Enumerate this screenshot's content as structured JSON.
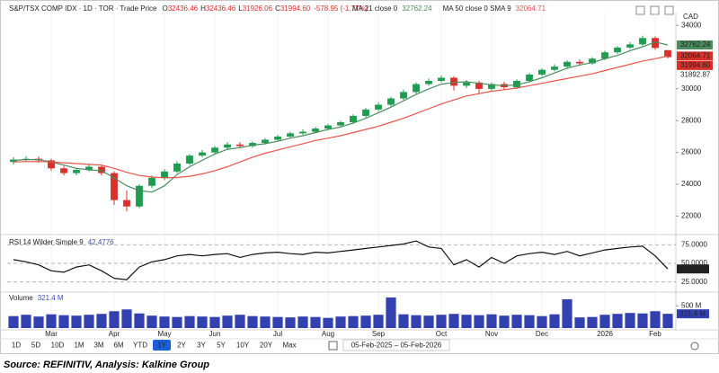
{
  "chart_data": [
    {
      "type": "candlestick",
      "title": "S&P/TSX COMP IDX · 1D · TOR · Trade Price",
      "currency": "CAD",
      "categories": [
        null,
        null,
        null,
        "Mar",
        null,
        null,
        null,
        null,
        "Apr",
        null,
        null,
        null,
        "May",
        null,
        null,
        null,
        "Jun",
        null,
        null,
        null,
        null,
        "Jul",
        null,
        null,
        null,
        "Aug",
        null,
        null,
        null,
        "Sep",
        null,
        null,
        null,
        null,
        "Oct",
        null,
        null,
        null,
        "Nov",
        null,
        null,
        null,
        "Dec",
        null,
        null,
        null,
        null,
        "2026",
        null,
        null,
        null,
        "Feb",
        null
      ],
      "open": [
        25400,
        25550,
        25600,
        25500,
        25000,
        24700,
        24900,
        25100,
        24700,
        23000,
        22600,
        23900,
        24400,
        24800,
        25300,
        25800,
        26000,
        26300,
        26500,
        26400,
        26600,
        26800,
        27000,
        27200,
        27300,
        27500,
        27700,
        27900,
        28300,
        28700,
        29000,
        29400,
        29800,
        30300,
        30500,
        30700,
        30200,
        30400,
        30000,
        30300,
        30100,
        30500,
        30900,
        31200,
        31400,
        31700,
        31600,
        31900,
        32300,
        32600,
        32800,
        33200,
        32436.46
      ],
      "high": [
        25700,
        25750,
        25750,
        25600,
        25150,
        25050,
        25250,
        25200,
        24800,
        23600,
        24000,
        24550,
        24950,
        25450,
        25900,
        26150,
        26400,
        26650,
        26650,
        26700,
        26900,
        27100,
        27300,
        27450,
        27600,
        27800,
        28000,
        28400,
        28800,
        29150,
        29500,
        29950,
        30400,
        30650,
        30850,
        30800,
        30550,
        30500,
        30400,
        30450,
        30600,
        31000,
        31300,
        31550,
        31800,
        31850,
        32000,
        32400,
        32700,
        32950,
        33350,
        33300,
        32436.46
      ],
      "low": [
        25250,
        25400,
        25350,
        24850,
        24550,
        24550,
        24800,
        24550,
        22700,
        22300,
        22500,
        23750,
        24250,
        24700,
        25200,
        25700,
        25900,
        26200,
        26250,
        26300,
        26500,
        26700,
        26900,
        27100,
        27200,
        27400,
        27600,
        27800,
        28200,
        28600,
        28900,
        29300,
        29700,
        30200,
        30400,
        29900,
        30050,
        29700,
        29850,
        29950,
        30000,
        30400,
        30800,
        31100,
        31300,
        31450,
        31500,
        31800,
        32200,
        32500,
        32700,
        32450,
        31926.06
      ],
      "close": [
        25550,
        25600,
        25500,
        25000,
        24700,
        24900,
        25100,
        24700,
        23000,
        22600,
        23900,
        24400,
        24800,
        25300,
        25800,
        26000,
        26300,
        26500,
        26400,
        26600,
        26800,
        27000,
        27200,
        27300,
        27500,
        27700,
        27900,
        28300,
        28700,
        29000,
        29400,
        29800,
        30300,
        30500,
        30700,
        30200,
        30400,
        30000,
        30300,
        30100,
        30500,
        30900,
        31200,
        31400,
        31700,
        31600,
        31900,
        32300,
        32600,
        32800,
        33200,
        32573.55,
        31994.6
      ],
      "close_labels": [
        null,
        null,
        null,
        null,
        null,
        null,
        null,
        null,
        null,
        null,
        null,
        null,
        null,
        null,
        null,
        null,
        null,
        null,
        null,
        null,
        null,
        null,
        null,
        null,
        null,
        null,
        null,
        null,
        null,
        null,
        null,
        null,
        null,
        null,
        null,
        null,
        null,
        null,
        null,
        null,
        null,
        null,
        null,
        null,
        null,
        null,
        null,
        null,
        null,
        null,
        null,
        null,
        "31994.60"
      ],
      "up_color": "#1e9c50",
      "down_color": "#d9302b",
      "series": [
        {
          "name": "MA 21 close 0",
          "color": "#4a8c5c",
          "values": [
            25500,
            25550,
            25550,
            25400,
            25200,
            25000,
            24900,
            24850,
            24400,
            23900,
            23600,
            23500,
            23900,
            24600,
            25100,
            25500,
            25900,
            26200,
            26300,
            26450,
            26550,
            26700,
            26900,
            27050,
            27250,
            27450,
            27600,
            27850,
            28150,
            28500,
            28850,
            29250,
            29650,
            30000,
            30300,
            30400,
            30450,
            30350,
            30250,
            30200,
            30250,
            30450,
            30700,
            31000,
            31300,
            31500,
            31650,
            31900,
            32100,
            32400,
            32650,
            32950,
            32762.24
          ]
        },
        {
          "name": "MA 50 close 0 SMA 9",
          "color": "#e8534a",
          "values": [
            25400,
            25420,
            25430,
            25400,
            25350,
            25300,
            25250,
            25200,
            25000,
            24750,
            24550,
            24450,
            24400,
            24420,
            24500,
            24650,
            24850,
            25100,
            25400,
            25700,
            25950,
            26150,
            26350,
            26550,
            26750,
            26900,
            27050,
            27250,
            27450,
            27650,
            27900,
            28150,
            28450,
            28750,
            29050,
            29300,
            29550,
            29700,
            29850,
            29950,
            30050,
            30200,
            30350,
            30500,
            30650,
            30800,
            30950,
            31150,
            31350,
            31550,
            31750,
            31900,
            32064.71
          ]
        }
      ],
      "price_markers": [
        31892.87
      ],
      "ylim": [
        21000,
        34800
      ],
      "yticks": [
        22000,
        24000,
        26000,
        28000,
        30000,
        34000
      ]
    },
    {
      "type": "line",
      "title": "RSI 14 Wilder Simple 9",
      "color": "#111111",
      "values": [
        55,
        52,
        48,
        40,
        38,
        45,
        48,
        40,
        30,
        28,
        45,
        52,
        55,
        60,
        62,
        60,
        62,
        63,
        58,
        62,
        64,
        65,
        63,
        62,
        65,
        64,
        66,
        68,
        70,
        72,
        74,
        76,
        80,
        72,
        70,
        48,
        55,
        45,
        58,
        50,
        60,
        63,
        65,
        62,
        66,
        60,
        64,
        68,
        70,
        72,
        73,
        60,
        42.4776
      ],
      "ylim": [
        15,
        85
      ],
      "yticks": [
        {
          "value": 75,
          "label": "75.0000"
        },
        {
          "value": 50,
          "label": "50.0000"
        },
        {
          "value": 25,
          "label": "25.0000"
        }
      ]
    },
    {
      "type": "bar",
      "title": "Volume",
      "color": "#3340b0",
      "values": [
        270,
        300,
        260,
        310,
        290,
        280,
        300,
        320,
        380,
        420,
        330,
        280,
        260,
        250,
        270,
        260,
        250,
        280,
        300,
        270,
        260,
        250,
        240,
        260,
        250,
        230,
        260,
        270,
        280,
        300,
        690,
        310,
        290,
        280,
        300,
        320,
        300,
        290,
        310,
        280,
        300,
        290,
        270,
        310,
        650,
        240,
        250,
        300,
        320,
        340,
        330,
        380,
        321.4
      ],
      "value_labels": [
        null,
        null,
        null,
        null,
        null,
        null,
        null,
        null,
        null,
        null,
        null,
        null,
        null,
        null,
        null,
        null,
        null,
        null,
        null,
        null,
        null,
        null,
        null,
        null,
        null,
        null,
        null,
        null,
        null,
        null,
        null,
        null,
        null,
        null,
        null,
        null,
        null,
        null,
        null,
        null,
        null,
        null,
        null,
        null,
        null,
        null,
        null,
        null,
        null,
        null,
        null,
        null,
        "321.4 M"
      ],
      "ylim": [
        0,
        750
      ],
      "yticks": [
        {
          "value": 500,
          "label": "500 M"
        }
      ]
    }
  ],
  "header": {
    "ohlc_letters": [
      "O",
      "H",
      "L",
      "C"
    ],
    "change": "-578.95 (-1.77%)"
  },
  "toolbar": {
    "buttons": [
      "1D",
      "5D",
      "10D",
      "1M",
      "3M",
      "6M",
      "YTD",
      "1Y",
      "2Y",
      "3Y",
      "5Y",
      "10Y",
      "20Y",
      "Max"
    ],
    "active": 7,
    "date_range": "05-Feb-2025 – 05-Feb-2026"
  },
  "source": "Source: REFINITIV, Analysis: Kalkine Group"
}
